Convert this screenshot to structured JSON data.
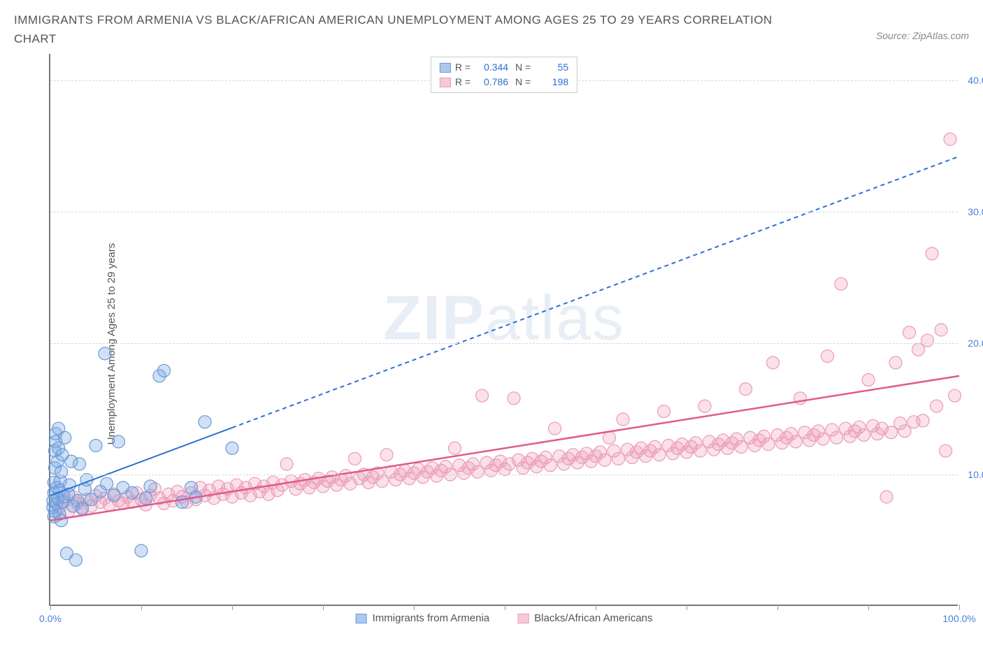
{
  "title": "IMMIGRANTS FROM ARMENIA VS BLACK/AFRICAN AMERICAN UNEMPLOYMENT AMONG AGES 25 TO 29 YEARS CORRELATION CHART",
  "source": "Source: ZipAtlas.com",
  "watermark_a": "ZIP",
  "watermark_b": "atlas",
  "chart": {
    "type": "scatter",
    "ylabel": "Unemployment Among Ages 25 to 29 years",
    "background_color": "#ffffff",
    "grid_color": "#d8d8d8",
    "axis_color": "#777777",
    "tick_label_color": "#4a7fd8",
    "xlim": [
      0,
      100
    ],
    "ylim": [
      0,
      42
    ],
    "xticks": [
      0,
      10,
      20,
      30,
      40,
      50,
      60,
      70,
      80,
      90,
      100
    ],
    "xtick_labels": {
      "0": "0.0%",
      "100": "100.0%"
    },
    "yticks": [
      10,
      20,
      30,
      40
    ],
    "ytick_labels": [
      "10.0%",
      "20.0%",
      "30.0%",
      "40.0%"
    ],
    "marker_radius": 9,
    "marker_stroke_width": 1.2,
    "series": [
      {
        "name": "Immigrants from Armenia",
        "color_fill": "rgba(120,165,225,0.35)",
        "color_stroke": "#6a9bd8",
        "swatch_fill": "#aec8ec",
        "swatch_border": "#6a9bd8",
        "R": "0.344",
        "N": "55",
        "trend": {
          "solid_to_x": 20,
          "x1": 0,
          "y1": 8.4,
          "x2": 100,
          "y2": 34.2,
          "color": "#2b6fd6",
          "width": 2,
          "dash": "6,5"
        },
        "points": [
          [
            0.3,
            7.5
          ],
          [
            0.3,
            8.0
          ],
          [
            0.4,
            6.8
          ],
          [
            0.4,
            8.6
          ],
          [
            0.4,
            9.4
          ],
          [
            0.5,
            7.2
          ],
          [
            0.5,
            10.5
          ],
          [
            0.5,
            11.8
          ],
          [
            0.6,
            12.5
          ],
          [
            0.6,
            13.1
          ],
          [
            0.7,
            7.8
          ],
          [
            0.7,
            9.0
          ],
          [
            0.8,
            8.2
          ],
          [
            0.8,
            11.0
          ],
          [
            0.9,
            12.0
          ],
          [
            0.9,
            13.5
          ],
          [
            1.0,
            7.0
          ],
          [
            1.0,
            8.8
          ],
          [
            1.1,
            9.5
          ],
          [
            1.2,
            6.5
          ],
          [
            1.2,
            10.2
          ],
          [
            1.3,
            11.5
          ],
          [
            1.4,
            7.9
          ],
          [
            1.5,
            8.3
          ],
          [
            1.6,
            12.8
          ],
          [
            1.8,
            4.0
          ],
          [
            2.0,
            8.5
          ],
          [
            2.1,
            9.2
          ],
          [
            2.3,
            11.0
          ],
          [
            2.5,
            7.6
          ],
          [
            2.8,
            3.5
          ],
          [
            3.0,
            8.0
          ],
          [
            3.2,
            10.8
          ],
          [
            3.5,
            7.4
          ],
          [
            3.8,
            8.9
          ],
          [
            4.0,
            9.6
          ],
          [
            4.5,
            8.1
          ],
          [
            5.0,
            12.2
          ],
          [
            5.5,
            8.7
          ],
          [
            6.0,
            19.2
          ],
          [
            6.2,
            9.3
          ],
          [
            7.0,
            8.4
          ],
          [
            7.5,
            12.5
          ],
          [
            8.0,
            9.0
          ],
          [
            9.0,
            8.6
          ],
          [
            10.0,
            4.2
          ],
          [
            10.5,
            8.2
          ],
          [
            11.0,
            9.1
          ],
          [
            12.0,
            17.5
          ],
          [
            12.5,
            17.9
          ],
          [
            14.5,
            7.9
          ],
          [
            15.5,
            9.0
          ],
          [
            16.0,
            8.3
          ],
          [
            17.0,
            14.0
          ],
          [
            20.0,
            12.0
          ]
        ]
      },
      {
        "name": "Blacks/African Americans",
        "color_fill": "rgba(240,155,185,0.30)",
        "color_stroke": "#ea9bb8",
        "swatch_fill": "#f8c9d8",
        "swatch_border": "#ea9bb8",
        "R": "0.786",
        "N": "198",
        "trend": {
          "solid_to_x": 100,
          "x1": 0,
          "y1": 6.5,
          "x2": 100,
          "y2": 17.5,
          "color": "#e05a8a",
          "width": 2.5,
          "dash": ""
        },
        "points": [
          [
            1,
            7.5
          ],
          [
            1.5,
            8.0
          ],
          [
            2,
            7.2
          ],
          [
            2.5,
            8.3
          ],
          [
            3,
            7.8
          ],
          [
            3.5,
            7.5
          ],
          [
            4,
            8.1
          ],
          [
            4.5,
            7.6
          ],
          [
            5,
            8.4
          ],
          [
            5.5,
            7.9
          ],
          [
            6,
            8.2
          ],
          [
            6.5,
            7.7
          ],
          [
            7,
            8.5
          ],
          [
            7.5,
            8.0
          ],
          [
            8,
            7.8
          ],
          [
            8.5,
            8.3
          ],
          [
            9,
            7.9
          ],
          [
            9.5,
            8.6
          ],
          [
            10,
            8.1
          ],
          [
            10.5,
            7.7
          ],
          [
            11,
            8.4
          ],
          [
            11.5,
            8.9
          ],
          [
            12,
            8.2
          ],
          [
            12.5,
            7.8
          ],
          [
            13,
            8.5
          ],
          [
            13.5,
            8.0
          ],
          [
            14,
            8.7
          ],
          [
            14.5,
            8.3
          ],
          [
            15,
            7.9
          ],
          [
            15.5,
            8.6
          ],
          [
            16,
            8.1
          ],
          [
            16.5,
            9.0
          ],
          [
            17,
            8.4
          ],
          [
            17.5,
            8.8
          ],
          [
            18,
            8.2
          ],
          [
            18.5,
            9.1
          ],
          [
            19,
            8.5
          ],
          [
            19.5,
            8.9
          ],
          [
            20,
            8.3
          ],
          [
            20.5,
            9.2
          ],
          [
            21,
            8.6
          ],
          [
            21.5,
            9.0
          ],
          [
            22,
            8.4
          ],
          [
            22.5,
            9.3
          ],
          [
            23,
            8.7
          ],
          [
            23.5,
            9.1
          ],
          [
            24,
            8.5
          ],
          [
            24.5,
            9.4
          ],
          [
            25,
            8.8
          ],
          [
            25.5,
            9.2
          ],
          [
            26,
            10.8
          ],
          [
            26.5,
            9.5
          ],
          [
            27,
            8.9
          ],
          [
            27.5,
            9.3
          ],
          [
            28,
            9.6
          ],
          [
            28.5,
            9.0
          ],
          [
            29,
            9.4
          ],
          [
            29.5,
            9.7
          ],
          [
            30,
            9.1
          ],
          [
            30.5,
            9.5
          ],
          [
            31,
            9.8
          ],
          [
            31.5,
            9.2
          ],
          [
            32,
            9.6
          ],
          [
            32.5,
            9.9
          ],
          [
            33,
            9.3
          ],
          [
            33.5,
            11.2
          ],
          [
            34,
            9.7
          ],
          [
            34.5,
            10.0
          ],
          [
            35,
            9.4
          ],
          [
            35.5,
            9.8
          ],
          [
            36,
            10.1
          ],
          [
            36.5,
            9.5
          ],
          [
            37,
            11.5
          ],
          [
            37.5,
            10.2
          ],
          [
            38,
            9.6
          ],
          [
            38.5,
            10.0
          ],
          [
            39,
            10.3
          ],
          [
            39.5,
            9.7
          ],
          [
            40,
            10.1
          ],
          [
            40.5,
            10.4
          ],
          [
            41,
            9.8
          ],
          [
            41.5,
            10.2
          ],
          [
            42,
            10.5
          ],
          [
            42.5,
            9.9
          ],
          [
            43,
            10.3
          ],
          [
            43.5,
            10.6
          ],
          [
            44,
            10.0
          ],
          [
            44.5,
            12.0
          ],
          [
            45,
            10.7
          ],
          [
            45.5,
            10.1
          ],
          [
            46,
            10.5
          ],
          [
            46.5,
            10.8
          ],
          [
            47,
            10.2
          ],
          [
            47.5,
            16.0
          ],
          [
            48,
            10.9
          ],
          [
            48.5,
            10.3
          ],
          [
            49,
            10.7
          ],
          [
            49.5,
            11.0
          ],
          [
            50,
            10.4
          ],
          [
            50.5,
            10.8
          ],
          [
            51,
            15.8
          ],
          [
            51.5,
            11.1
          ],
          [
            52,
            10.5
          ],
          [
            52.5,
            10.9
          ],
          [
            53,
            11.2
          ],
          [
            53.5,
            10.6
          ],
          [
            54,
            11.0
          ],
          [
            54.5,
            11.3
          ],
          [
            55,
            10.7
          ],
          [
            55.5,
            13.5
          ],
          [
            56,
            11.4
          ],
          [
            56.5,
            10.8
          ],
          [
            57,
            11.2
          ],
          [
            57.5,
            11.5
          ],
          [
            58,
            10.9
          ],
          [
            58.5,
            11.3
          ],
          [
            59,
            11.6
          ],
          [
            59.5,
            11.0
          ],
          [
            60,
            11.4
          ],
          [
            60.5,
            11.7
          ],
          [
            61,
            11.1
          ],
          [
            61.5,
            12.8
          ],
          [
            62,
            11.8
          ],
          [
            62.5,
            11.2
          ],
          [
            63,
            14.2
          ],
          [
            63.5,
            11.9
          ],
          [
            64,
            11.3
          ],
          [
            64.5,
            11.7
          ],
          [
            65,
            12.0
          ],
          [
            65.5,
            11.4
          ],
          [
            66,
            11.8
          ],
          [
            66.5,
            12.1
          ],
          [
            67,
            11.5
          ],
          [
            67.5,
            14.8
          ],
          [
            68,
            12.2
          ],
          [
            68.5,
            11.6
          ],
          [
            69,
            12.0
          ],
          [
            69.5,
            12.3
          ],
          [
            70,
            11.7
          ],
          [
            70.5,
            12.1
          ],
          [
            71,
            12.4
          ],
          [
            71.5,
            11.8
          ],
          [
            72,
            15.2
          ],
          [
            72.5,
            12.5
          ],
          [
            73,
            11.9
          ],
          [
            73.5,
            12.3
          ],
          [
            74,
            12.6
          ],
          [
            74.5,
            12.0
          ],
          [
            75,
            12.4
          ],
          [
            75.5,
            12.7
          ],
          [
            76,
            12.1
          ],
          [
            76.5,
            16.5
          ],
          [
            77,
            12.8
          ],
          [
            77.5,
            12.2
          ],
          [
            78,
            12.6
          ],
          [
            78.5,
            12.9
          ],
          [
            79,
            12.3
          ],
          [
            79.5,
            18.5
          ],
          [
            80,
            13.0
          ],
          [
            80.5,
            12.4
          ],
          [
            81,
            12.8
          ],
          [
            81.5,
            13.1
          ],
          [
            82,
            12.5
          ],
          [
            82.5,
            15.8
          ],
          [
            83,
            13.2
          ],
          [
            83.5,
            12.6
          ],
          [
            84,
            13.0
          ],
          [
            84.5,
            13.3
          ],
          [
            85,
            12.7
          ],
          [
            85.5,
            19.0
          ],
          [
            86,
            13.4
          ],
          [
            86.5,
            12.8
          ],
          [
            87,
            24.5
          ],
          [
            87.5,
            13.5
          ],
          [
            88,
            12.9
          ],
          [
            88.5,
            13.3
          ],
          [
            89,
            13.6
          ],
          [
            89.5,
            13.0
          ],
          [
            90,
            17.2
          ],
          [
            90.5,
            13.7
          ],
          [
            91,
            13.1
          ],
          [
            91.5,
            13.5
          ],
          [
            92,
            8.3
          ],
          [
            92.5,
            13.2
          ],
          [
            93,
            18.5
          ],
          [
            93.5,
            13.9
          ],
          [
            94,
            13.3
          ],
          [
            94.5,
            20.8
          ],
          [
            95,
            14.0
          ],
          [
            95.5,
            19.5
          ],
          [
            96,
            14.1
          ],
          [
            96.5,
            20.2
          ],
          [
            97,
            26.8
          ],
          [
            97.5,
            15.2
          ],
          [
            98,
            21.0
          ],
          [
            98.5,
            11.8
          ],
          [
            99,
            35.5
          ],
          [
            99.5,
            16.0
          ]
        ]
      }
    ],
    "legend_bottom": [
      {
        "label": "Immigrants from Armenia",
        "swatch_fill": "#aec8ec",
        "swatch_border": "#6a9bd8"
      },
      {
        "label": "Blacks/African Americans",
        "swatch_fill": "#f8c9d8",
        "swatch_border": "#ea9bb8"
      }
    ]
  }
}
